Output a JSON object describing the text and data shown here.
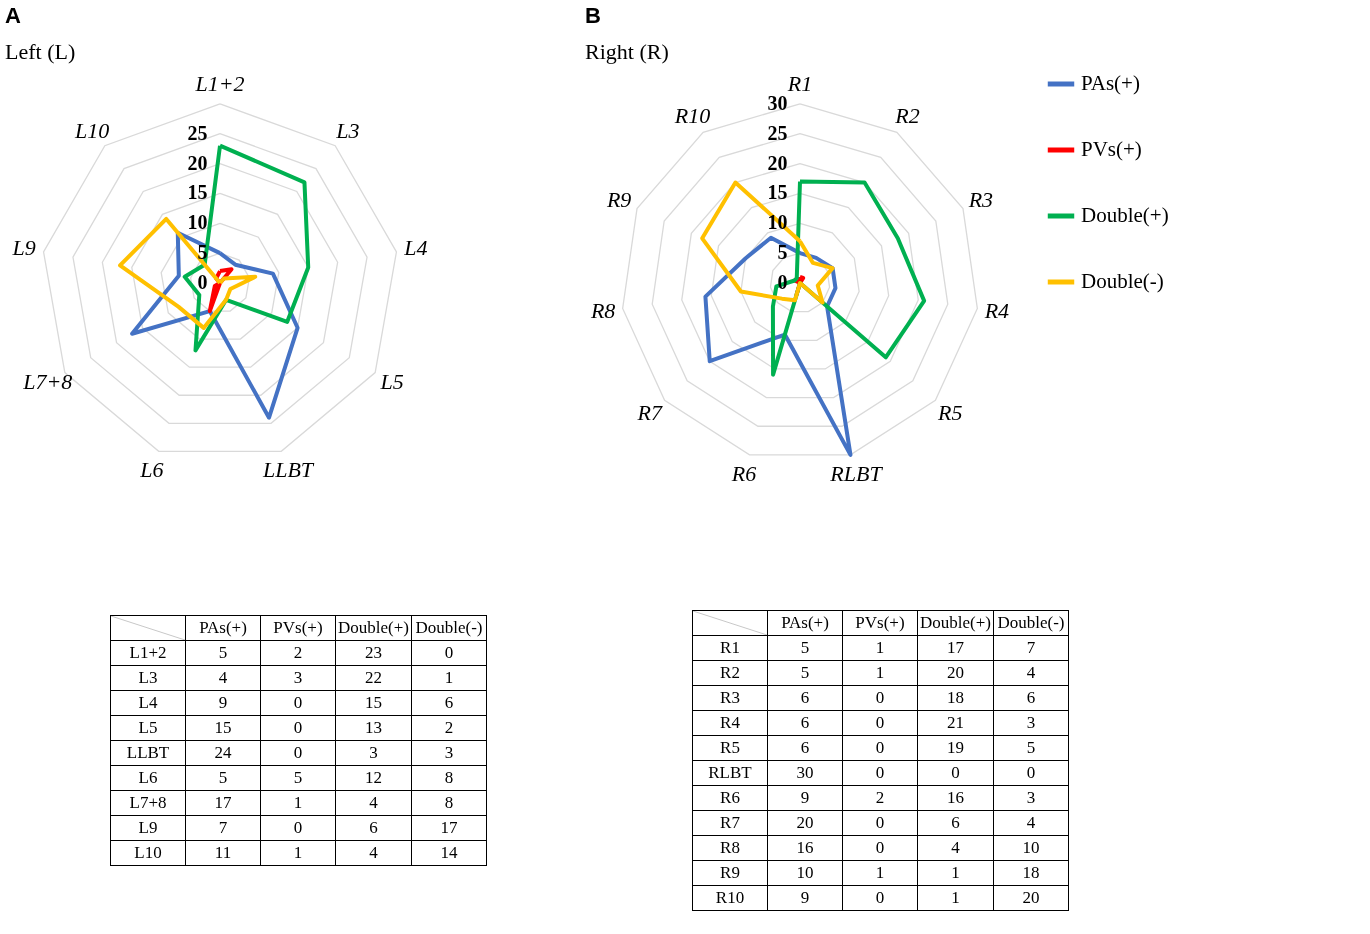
{
  "chart_data": [
    {
      "type": "radar",
      "title": "A",
      "subtitle": "Left (L)",
      "categories": [
        "L1+2",
        "L3",
        "L4",
        "L5",
        "LLBT",
        "L6",
        "L7+8",
        "L9",
        "L10"
      ],
      "series": [
        {
          "color": "#4472c4",
          "values": [
            5,
            4,
            9,
            15,
            24,
            5,
            17,
            7,
            11
          ]
        },
        {
          "color": "#ff0000",
          "values": [
            2,
            3,
            0,
            0,
            0,
            5,
            1,
            0,
            1
          ]
        },
        {
          "color": "#00b050",
          "values": [
            23,
            22,
            15,
            13,
            3,
            12,
            4,
            6,
            4
          ]
        },
        {
          "color": "#ffc000",
          "values": [
            0,
            1,
            6,
            2,
            3,
            8,
            8,
            17,
            14
          ]
        }
      ],
      "ylim": [
        0,
        30
      ],
      "yticks": [
        0,
        5,
        10,
        15,
        20,
        25
      ],
      "grid": true,
      "legend": false
    },
    {
      "type": "other",
      "categories": [
        "L1+2",
        "L3",
        "L4",
        "L5",
        "LLBT",
        "L6",
        "L7+8",
        "L9",
        "L10"
      ],
      "series": [
        {
          "name": "PAs(+)",
          "values": [
            5,
            4,
            9,
            15,
            24,
            5,
            17,
            7,
            11
          ]
        },
        {
          "name": "PVs(+)",
          "values": [
            2,
            3,
            0,
            0,
            0,
            5,
            1,
            0,
            1
          ]
        },
        {
          "name": "Double(+)",
          "values": [
            23,
            22,
            15,
            13,
            3,
            12,
            4,
            6,
            4
          ]
        },
        {
          "name": "Double(-)",
          "values": [
            0,
            1,
            6,
            2,
            3,
            8,
            8,
            17,
            14
          ]
        }
      ],
      "data_labels": true
    },
    {
      "type": "radar",
      "title": "B",
      "subtitle": "Right (R)",
      "categories": [
        "R1",
        "R2",
        "R3",
        "R4",
        "R5",
        "RLBT",
        "R6",
        "R7",
        "R8",
        "R9",
        "R10"
      ],
      "series": [
        {
          "name": "PAs(+)",
          "color": "#4472c4",
          "values": [
            5,
            5,
            6,
            6,
            6,
            30,
            9,
            20,
            16,
            10,
            9
          ]
        },
        {
          "name": "PVs(+)",
          "color": "#ff0000",
          "values": [
            1,
            1,
            0,
            0,
            0,
            0,
            2,
            0,
            0,
            1,
            0
          ]
        },
        {
          "name": "Double(+)",
          "color": "#00b050",
          "values": [
            17,
            20,
            18,
            21,
            19,
            0,
            16,
            6,
            4,
            1,
            1
          ]
        },
        {
          "name": "Double(-)",
          "color": "#ffc000",
          "values": [
            7,
            4,
            6,
            3,
            5,
            0,
            3,
            4,
            10,
            18,
            20
          ]
        }
      ],
      "ylim": [
        0,
        30
      ],
      "yticks": [
        0,
        5,
        10,
        15,
        20,
        25,
        30
      ],
      "grid": true,
      "legend": "right"
    },
    {
      "type": "other",
      "categories": [
        "R1",
        "R2",
        "R3",
        "R4",
        "R5",
        "RLBT",
        "R6",
        "R7",
        "R8",
        "R9",
        "R10"
      ],
      "series": [
        {
          "name": "PAs(+)",
          "values": [
            5,
            5,
            6,
            6,
            6,
            30,
            9,
            20,
            16,
            10,
            9
          ]
        },
        {
          "name": "PVs(+)",
          "values": [
            1,
            1,
            0,
            0,
            0,
            0,
            2,
            0,
            0,
            1,
            0
          ]
        },
        {
          "name": "Double(+)",
          "values": [
            17,
            20,
            18,
            21,
            19,
            0,
            16,
            6,
            4,
            1,
            1
          ]
        },
        {
          "name": "Double(-)",
          "values": [
            7,
            4,
            6,
            3,
            5,
            0,
            3,
            4,
            10,
            18,
            20
          ]
        }
      ],
      "data_labels": true
    }
  ]
}
